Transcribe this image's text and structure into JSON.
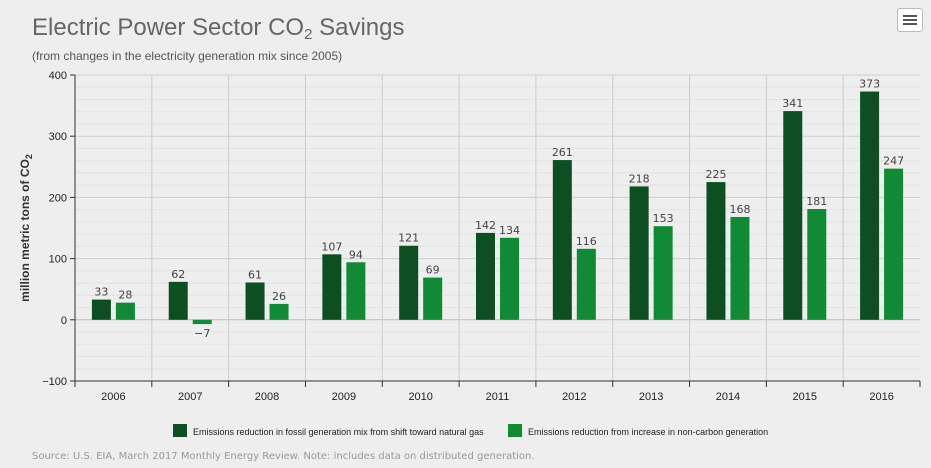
{
  "title_main": "Electric Power Sector CO",
  "title_sub": "2",
  "title_end": " Savings",
  "subtitle": "(from changes in the electricity generation mix since 2005)",
  "source": "Source: U.S. EIA, March 2017 Monthly Energy Review. Note: includes data on distributed generation.",
  "menu_icon": "hamburger-menu-icon",
  "colors": {
    "series1": "#0d4f23",
    "series2": "#108a35",
    "grid": "#d8d8d8",
    "axis": "#333333"
  },
  "chart_data": {
    "type": "bar",
    "categories": [
      "2006",
      "2007",
      "2008",
      "2009",
      "2010",
      "2011",
      "2012",
      "2013",
      "2014",
      "2015",
      "2016"
    ],
    "series": [
      {
        "name": "Emissions reduction in fossil generation mix from shift toward natural gas",
        "values": [
          33,
          62,
          61,
          107,
          121,
          142,
          261,
          218,
          225,
          341,
          373
        ]
      },
      {
        "name": "Emissions reduction from increase in non-carbon generation",
        "values": [
          28,
          -7,
          26,
          94,
          69,
          134,
          116,
          153,
          168,
          181,
          247
        ]
      }
    ],
    "value_labels": [
      [
        "33",
        "62",
        "61",
        "107",
        "121",
        "142",
        "261",
        "218",
        "225",
        "341",
        "373"
      ],
      [
        "28",
        "−7",
        "26",
        "94",
        "69",
        "134",
        "116",
        "153",
        "168",
        "181",
        "247"
      ]
    ],
    "ylabel_main": "million metric tons of CO",
    "ylabel_sub": "2",
    "ylim": [
      -100,
      400
    ],
    "yticks": [
      "400",
      "300",
      "200",
      "100",
      "0",
      "−100"
    ],
    "ytick_values": [
      400,
      300,
      200,
      100,
      0,
      -100
    ],
    "minor_step": 20,
    "grid": true,
    "legend_position": "bottom"
  }
}
